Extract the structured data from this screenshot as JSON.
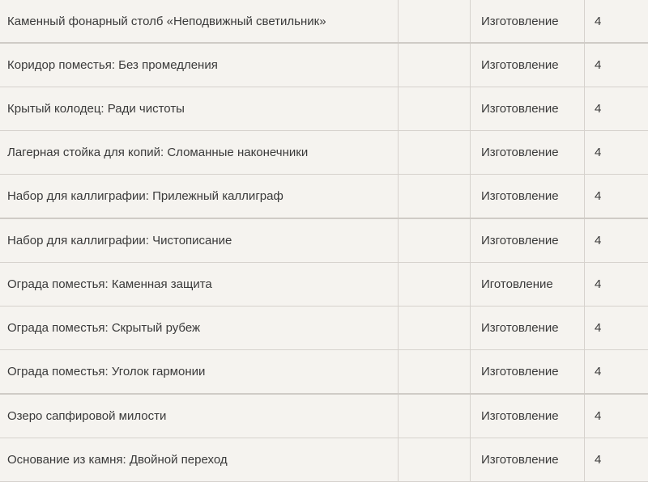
{
  "rows": [
    {
      "name": "Каменный фонарный столб «Неподвижный светильник»",
      "extra": "",
      "type": "Изготовление",
      "count": "4"
    },
    {
      "name": "Коридор поместья: Без промедления",
      "extra": "",
      "type": "Изготовление",
      "count": "4"
    },
    {
      "name": "Крытый колодец: Ради чистоты",
      "extra": "",
      "type": "Изготовление",
      "count": "4"
    },
    {
      "name": "Лагерная стойка для копий: Сломанные наконечники",
      "extra": "",
      "type": "Изготовление",
      "count": "4"
    },
    {
      "name": "Набор для каллиграфии: Прилежный каллиграф",
      "extra": "",
      "type": "Изготовление",
      "count": "4"
    },
    {
      "name": "Набор для каллиграфии: Чистописание",
      "extra": "",
      "type": "Изготовление",
      "count": "4"
    },
    {
      "name": "Ограда поместья: Каменная защита",
      "extra": "",
      "type": "Иготовление",
      "count": "4"
    },
    {
      "name": "Ограда поместья: Скрытый рубеж",
      "extra": "",
      "type": "Изготовление",
      "count": "4"
    },
    {
      "name": "Ограда поместья: Уголок гармонии",
      "extra": "",
      "type": "Изготовление",
      "count": "4"
    },
    {
      "name": "Озеро сапфировой милости",
      "extra": "",
      "type": "Изготовление",
      "count": "4"
    },
    {
      "name": "Основание из камня: Двойной переход",
      "extra": "",
      "type": "Изготовление",
      "count": "4"
    }
  ]
}
